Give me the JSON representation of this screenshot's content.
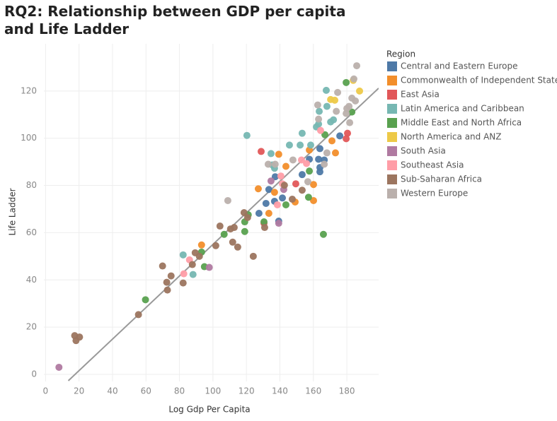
{
  "chart_data": {
    "type": "scatter",
    "title": "RQ2: Relationship between GDP per capita and Life Ladder",
    "x_label": "Log Gdp Per Capita",
    "y_label": "Life Ladder",
    "legend_title": "Region",
    "xlim": [
      -1,
      199
    ],
    "ylim": [
      -3,
      140
    ],
    "xticks": [
      0,
      20,
      40,
      60,
      80,
      100,
      120,
      140,
      160,
      180
    ],
    "yticks": [
      0,
      20,
      40,
      60,
      80,
      100,
      120
    ],
    "grid": true,
    "legend": "right",
    "trend_line": {
      "color": "#999999",
      "x": [
        13.6,
        199
      ],
      "y": [
        -2.7,
        121.2
      ]
    },
    "series": [
      {
        "name": "Central and Eastern Europe",
        "color": "#4e79a7",
        "x": [
          131.7,
          133.4,
          136.8,
          137.2,
          139.3,
          141.5,
          153.3,
          157.6,
          163.1,
          163.9,
          166.5,
          163.9,
          163.9,
          175.8,
          127.5
        ],
        "values": [
          72.4,
          78.3,
          73.3,
          83.7,
          64.9,
          74.7,
          84.6,
          91.1,
          91.1,
          95.6,
          90.8,
          87.6,
          85.8,
          101.0,
          68.2
        ]
      },
      {
        "name": "Commonwealth of Independent States",
        "color": "#f28e2b",
        "x": [
          93.2,
          127.1,
          133.4,
          136.8,
          139.3,
          143.6,
          149.1,
          160.1,
          160.1,
          171.1,
          173.2,
          157.6
        ],
        "values": [
          54.8,
          78.6,
          68.2,
          77.1,
          93.2,
          88.1,
          73.0,
          80.4,
          73.6,
          98.9,
          93.8,
          95.0
        ]
      },
      {
        "name": "East Asia",
        "color": "#e15759",
        "x": [
          128.8,
          130.5,
          149.5,
          180.4,
          179.6
        ],
        "values": [
          94.4,
          64.0,
          80.7,
          102.1,
          99.8
        ]
      },
      {
        "name": "Latin America and Caribbean",
        "color": "#76b7b2",
        "x": [
          82.2,
          88.1,
          120.3,
          134.7,
          136.8,
          145.7,
          152.1,
          153.3,
          158.4,
          161.8,
          163.5,
          163.1,
          168.1,
          167.7,
          170.3,
          172.0,
          135.5
        ],
        "values": [
          50.6,
          42.3,
          101.2,
          93.5,
          87.3,
          97.1,
          97.1,
          102.1,
          97.1,
          104.8,
          111.4,
          106.0,
          113.5,
          120.3,
          106.9,
          107.8,
          88.7
        ]
      },
      {
        "name": "Middle East and North Africa",
        "color": "#59a14f",
        "x": [
          59.7,
          93.2,
          94.9,
          106.7,
          119.0,
          119.0,
          121.1,
          143.6,
          157.6,
          157.1,
          166.9,
          166.0,
          179.6,
          183.0,
          130.5
        ],
        "values": [
          31.6,
          51.8,
          45.6,
          59.3,
          60.5,
          64.6,
          67.6,
          71.8,
          86.1,
          75.0,
          101.5,
          59.3,
          123.6,
          111.1,
          64.6
        ]
      },
      {
        "name": "North America and ANZ",
        "color": "#edc948",
        "x": [
          170.3,
          172.8,
          183.8,
          187.6
        ],
        "values": [
          116.4,
          116.1,
          124.5,
          120.0
        ]
      },
      {
        "name": "South Asia",
        "color": "#b07aa1",
        "x": [
          8.0,
          97.8,
          134.7,
          139.3,
          142.3
        ],
        "values": [
          3.0,
          45.3,
          81.9,
          64.0,
          78.3
        ]
      },
      {
        "name": "Southeast Asia",
        "color": "#ff9da7",
        "x": [
          82.6,
          86.0,
          138.5,
          140.6,
          152.9,
          155.9,
          164.3,
          141.5
        ],
        "values": [
          42.6,
          48.5,
          71.8,
          84.0,
          90.8,
          89.3,
          103.3,
          80.7
        ]
      },
      {
        "name": "Sub-Saharan Africa",
        "color": "#9c755f",
        "x": [
          17.4,
          18.2,
          20.3,
          55.5,
          69.9,
          72.4,
          72.8,
          75.0,
          82.2,
          87.7,
          89.4,
          91.9,
          101.7,
          104.2,
          110.5,
          111.8,
          112.7,
          114.8,
          118.6,
          120.7,
          124.1,
          130.9,
          147.4,
          153.3,
          142.7
        ],
        "values": [
          16.4,
          14.3,
          15.8,
          25.3,
          45.9,
          39.0,
          35.7,
          41.7,
          38.7,
          46.5,
          51.5,
          50.0,
          54.5,
          62.8,
          61.6,
          56.0,
          62.2,
          53.9,
          68.5,
          66.4,
          50.0,
          62.2,
          74.2,
          78.0,
          80.1
        ]
      },
      {
        "name": "Western Europe",
        "color": "#bab0ac",
        "x": [
          108.9,
          133.0,
          137.2,
          147.8,
          156.7,
          162.6,
          163.1,
          166.5,
          168.1,
          174.5,
          173.7,
          180.0,
          179.6,
          181.7,
          183.0,
          184.2,
          185.9,
          185.1,
          181.3
        ],
        "values": [
          73.6,
          89.0,
          89.0,
          90.8,
          81.6,
          114.1,
          108.1,
          89.0,
          93.8,
          119.4,
          111.4,
          112.6,
          110.5,
          106.6,
          117.0,
          125.1,
          130.7,
          115.8,
          113.5
        ]
      }
    ]
  }
}
